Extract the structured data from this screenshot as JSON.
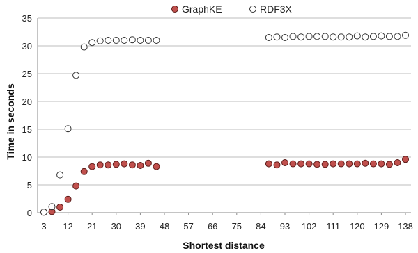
{
  "chart_data": {
    "type": "scatter",
    "title": "",
    "xlabel": "Shortest distance",
    "ylabel": "Time in seconds",
    "xlim": [
      3,
      140
    ],
    "ylim": [
      0,
      35
    ],
    "x_ticks": [
      3,
      12,
      21,
      30,
      39,
      48,
      57,
      66,
      75,
      84,
      93,
      102,
      111,
      120,
      129,
      138
    ],
    "y_ticks": [
      0,
      5,
      10,
      15,
      20,
      25,
      30,
      35
    ],
    "grid": "horizontal",
    "legend_position": "top-center",
    "series": [
      {
        "name": "GraphKE",
        "marker": "filled",
        "color": "#c0504d",
        "stroke": "#5a1a18",
        "points": [
          [
            3,
            0.1
          ],
          [
            6,
            0.2
          ],
          [
            9,
            1.0
          ],
          [
            12,
            2.4
          ],
          [
            15,
            4.8
          ],
          [
            18,
            7.4
          ],
          [
            21,
            8.3
          ],
          [
            24,
            8.6
          ],
          [
            27,
            8.6
          ],
          [
            30,
            8.7
          ],
          [
            33,
            8.8
          ],
          [
            36,
            8.6
          ],
          [
            39,
            8.5
          ],
          [
            42,
            8.9
          ],
          [
            45,
            8.3
          ],
          [
            87,
            8.8
          ],
          [
            90,
            8.6
          ],
          [
            93,
            9.0
          ],
          [
            96,
            8.8
          ],
          [
            99,
            8.8
          ],
          [
            102,
            8.8
          ],
          [
            105,
            8.7
          ],
          [
            108,
            8.7
          ],
          [
            111,
            8.8
          ],
          [
            114,
            8.8
          ],
          [
            117,
            8.8
          ],
          [
            120,
            8.8
          ],
          [
            123,
            8.9
          ],
          [
            126,
            8.8
          ],
          [
            129,
            8.8
          ],
          [
            132,
            8.7
          ],
          [
            135,
            9.0
          ],
          [
            138,
            9.6
          ]
        ]
      },
      {
        "name": "RDF3X",
        "marker": "hollow",
        "color": "#ffffff",
        "stroke": "#333333",
        "points": [
          [
            3,
            0.1
          ],
          [
            6,
            1.1
          ],
          [
            9,
            6.8
          ],
          [
            12,
            15.1
          ],
          [
            15,
            24.7
          ],
          [
            18,
            29.8
          ],
          [
            21,
            30.6
          ],
          [
            24,
            30.9
          ],
          [
            27,
            31.0
          ],
          [
            30,
            31.0
          ],
          [
            33,
            31.0
          ],
          [
            36,
            31.1
          ],
          [
            39,
            31.0
          ],
          [
            42,
            31.0
          ],
          [
            45,
            31.0
          ],
          [
            87,
            31.5
          ],
          [
            90,
            31.6
          ],
          [
            93,
            31.5
          ],
          [
            96,
            31.7
          ],
          [
            99,
            31.6
          ],
          [
            102,
            31.7
          ],
          [
            105,
            31.7
          ],
          [
            108,
            31.7
          ],
          [
            111,
            31.6
          ],
          [
            114,
            31.6
          ],
          [
            117,
            31.6
          ],
          [
            120,
            31.8
          ],
          [
            123,
            31.6
          ],
          [
            126,
            31.7
          ],
          [
            129,
            31.8
          ],
          [
            132,
            31.7
          ],
          [
            135,
            31.7
          ],
          [
            138,
            31.9
          ]
        ]
      }
    ]
  }
}
